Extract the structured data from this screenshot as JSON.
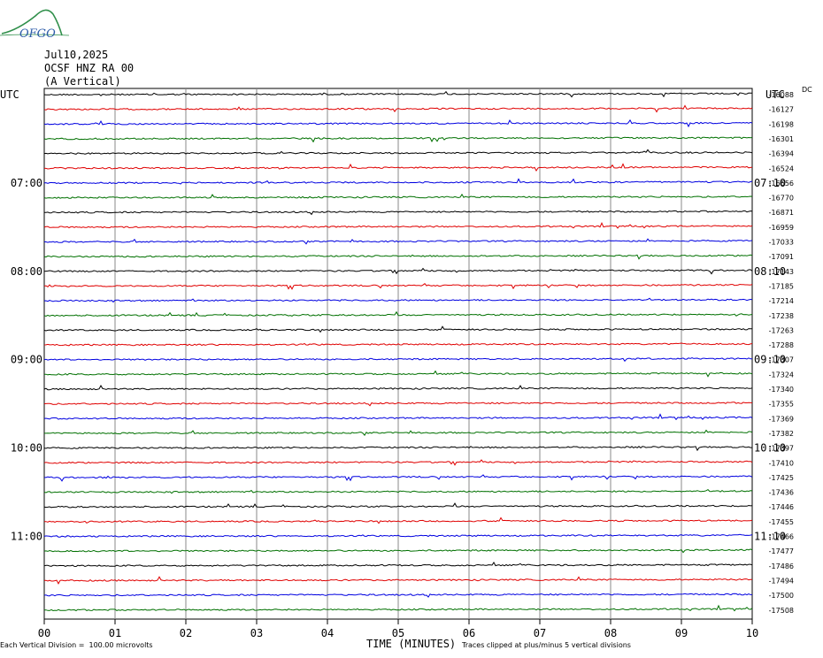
{
  "header": {
    "date": "Jul10,2025",
    "station": "OCSF HNZ RA 00",
    "component": "(A Vertical)"
  },
  "logo": {
    "text": "OFGO",
    "color": "#2f8f4a",
    "text_color": "#2a5aa8"
  },
  "footer": {
    "scale_note": "Each Vertical Division =  100.00 microvolts",
    "x_title": "TIME (MINUTES)",
    "clip_note": "Traces clipped at plus/minus 5 vertical divisions"
  },
  "chart_data": {
    "type": "line",
    "title": "",
    "xlabel": "TIME (MINUTES)",
    "xlim": [
      0,
      10
    ],
    "x_ticks": [
      "00",
      "01",
      "02",
      "03",
      "04",
      "05",
      "06",
      "07",
      "08",
      "09",
      "10"
    ],
    "left_axis_label": "UTC",
    "right_axis_label": "UTC",
    "right_offset_header": "DC",
    "hour_labels_left": [
      {
        "row": 6,
        "label": "07:00"
      },
      {
        "row": 12,
        "label": "08:00"
      },
      {
        "row": 18,
        "label": "09:00"
      },
      {
        "row": 24,
        "label": "10:00"
      },
      {
        "row": 30,
        "label": "11:00"
      }
    ],
    "hour_labels_right": [
      {
        "row": 6,
        "label": "07:10"
      },
      {
        "row": 12,
        "label": "08:10"
      },
      {
        "row": 18,
        "label": "09:10"
      },
      {
        "row": 24,
        "label": "10:10"
      },
      {
        "row": 30,
        "label": "11:10"
      }
    ],
    "trace_colors": [
      "#000000",
      "#e00000",
      "#0000e0",
      "#007000"
    ],
    "dc_offsets": [
      "-16088",
      "-16127",
      "-16198",
      "-16301",
      "-16394",
      "-16524",
      "-16656",
      "-16770",
      "-16871",
      "-16959",
      "-17033",
      "-17091",
      "-17143",
      "-17185",
      "-17214",
      "-17238",
      "-17263",
      "-17288",
      "-17307",
      "-17324",
      "-17340",
      "-17355",
      "-17369",
      "-17382",
      "-17397",
      "-17410",
      "-17425",
      "-17436",
      "-17446",
      "-17455",
      "-17466",
      "-17477",
      "-17486",
      "-17494",
      "-17500",
      "-17508"
    ],
    "grid": true
  }
}
